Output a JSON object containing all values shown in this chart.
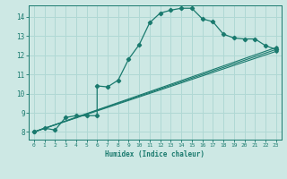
{
  "xlabel": "Humidex (Indice chaleur)",
  "background_color": "#cde8e4",
  "grid_color": "#b0d8d4",
  "line_color": "#1a7a6e",
  "xlim": [
    -0.5,
    23.5
  ],
  "ylim": [
    7.6,
    14.6
  ],
  "xticks": [
    0,
    1,
    2,
    3,
    4,
    5,
    6,
    7,
    8,
    9,
    10,
    11,
    12,
    13,
    14,
    15,
    16,
    17,
    18,
    19,
    20,
    21,
    22,
    23
  ],
  "yticks": [
    8,
    9,
    10,
    11,
    12,
    13,
    14
  ],
  "curve": {
    "x": [
      0,
      1,
      2,
      3,
      4,
      5,
      6,
      6,
      7,
      8,
      9,
      10,
      11,
      12,
      13,
      14,
      15,
      16,
      17,
      18,
      19,
      20,
      21,
      22,
      23
    ],
    "y": [
      8.0,
      8.2,
      8.1,
      8.75,
      8.85,
      8.85,
      8.85,
      10.4,
      10.35,
      10.7,
      11.8,
      12.55,
      13.7,
      14.2,
      14.35,
      14.45,
      14.45,
      13.9,
      13.75,
      13.1,
      12.9,
      12.85,
      12.85,
      12.5,
      12.3
    ]
  },
  "straight_lines": [
    {
      "x": [
        0,
        23
      ],
      "y": [
        8.0,
        12.4
      ]
    },
    {
      "x": [
        0,
        23
      ],
      "y": [
        8.0,
        12.3
      ]
    },
    {
      "x": [
        0,
        23
      ],
      "y": [
        8.0,
        12.2
      ]
    }
  ]
}
